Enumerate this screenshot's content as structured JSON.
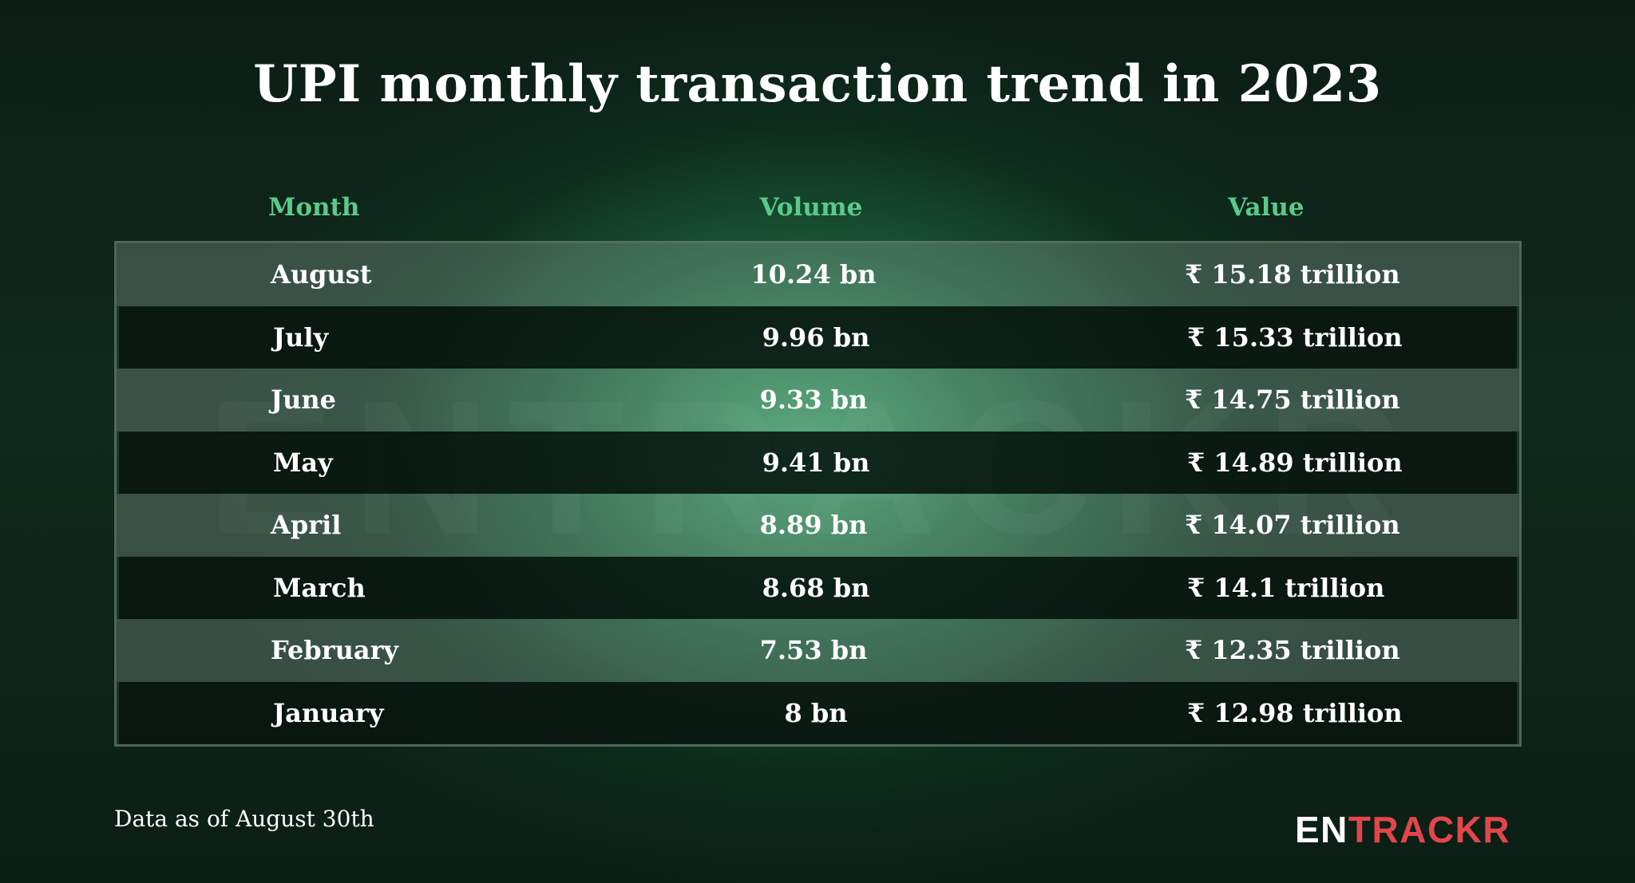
{
  "chart_data": {
    "type": "table",
    "title": "UPI monthly transaction trend in 2023",
    "columns": [
      "Month",
      "Volume",
      "Value"
    ],
    "rows": [
      {
        "month": "August",
        "volume": "10.24 bn",
        "value": "₹ 15.18 trillion"
      },
      {
        "month": "July",
        "volume": "9.96 bn",
        "value": "₹ 15.33 trillion"
      },
      {
        "month": "June",
        "volume": "9.33 bn",
        "value": "₹ 14.75 trillion"
      },
      {
        "month": "May",
        "volume": "9.41 bn",
        "value": "₹ 14.89 trillion"
      },
      {
        "month": "April",
        "volume": "8.89 bn",
        "value": "₹ 14.07 trillion"
      },
      {
        "month": "March",
        "volume": "8.68 bn",
        "value": "₹ 14.1 trillion"
      },
      {
        "month": "February",
        "volume": "7.53 bn",
        "value": "₹ 12.35 trillion"
      },
      {
        "month": "January",
        "volume": "8 bn",
        "value": "₹ 12.98 trillion"
      }
    ],
    "footnote": "Data as of August 30th"
  },
  "brand": {
    "logo_text": "ENTRACKR",
    "logo_part_white": "EN",
    "logo_part_red": "TRACKR",
    "watermark_text": "ENTRACKR"
  },
  "colors": {
    "header_text": "#5bc98a",
    "accent_red": "#e2464b",
    "background": "#0b1a12",
    "glow": "#3ea56e"
  }
}
